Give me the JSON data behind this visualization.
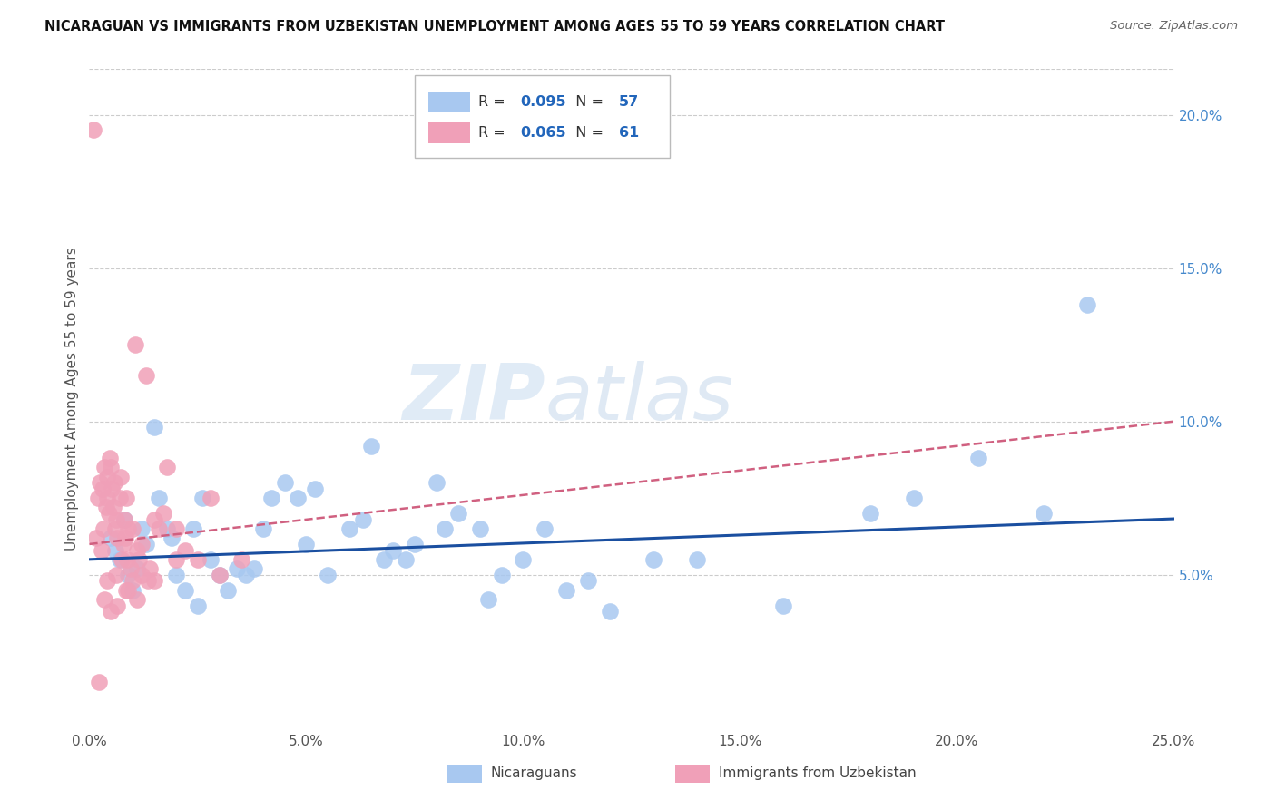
{
  "title": "NICARAGUAN VS IMMIGRANTS FROM UZBEKISTAN UNEMPLOYMENT AMONG AGES 55 TO 59 YEARS CORRELATION CHART",
  "source": "Source: ZipAtlas.com",
  "ylabel": "Unemployment Among Ages 55 to 59 years",
  "xlim": [
    0.0,
    25.0
  ],
  "ylim": [
    0.0,
    21.5
  ],
  "legend_blue_R": "0.095",
  "legend_blue_N": "57",
  "legend_pink_R": "0.065",
  "legend_pink_N": "61",
  "blue_color": "#A8C8F0",
  "pink_color": "#F0A0B8",
  "blue_line_color": "#1A4FA0",
  "pink_line_color": "#D06080",
  "watermark_zip": "ZIP",
  "watermark_atlas": "atlas",
  "blue_x": [
    0.5,
    0.6,
    0.7,
    0.8,
    0.9,
    1.0,
    1.1,
    1.2,
    1.3,
    1.5,
    1.6,
    1.8,
    1.9,
    2.0,
    2.2,
    2.4,
    2.5,
    2.6,
    2.8,
    3.0,
    3.2,
    3.4,
    3.6,
    3.8,
    4.0,
    4.2,
    4.5,
    4.8,
    5.0,
    5.5,
    6.0,
    6.3,
    6.8,
    7.0,
    7.5,
    8.0,
    8.2,
    8.5,
    9.0,
    9.5,
    10.0,
    10.5,
    11.0,
    11.5,
    12.0,
    13.0,
    14.0,
    16.0,
    18.0,
    19.0,
    20.5,
    22.0,
    23.0,
    5.2,
    7.3,
    9.2,
    6.5
  ],
  "blue_y": [
    6.2,
    5.8,
    5.5,
    6.8,
    5.0,
    4.5,
    5.2,
    6.5,
    6.0,
    9.8,
    7.5,
    6.5,
    6.2,
    5.0,
    4.5,
    6.5,
    4.0,
    7.5,
    5.5,
    5.0,
    4.5,
    5.2,
    5.0,
    5.2,
    6.5,
    7.5,
    8.0,
    7.5,
    6.0,
    5.0,
    6.5,
    6.8,
    5.5,
    5.8,
    6.0,
    8.0,
    6.5,
    7.0,
    6.5,
    5.0,
    5.5,
    6.5,
    4.5,
    4.8,
    3.8,
    5.5,
    5.5,
    4.0,
    7.0,
    7.5,
    8.8,
    7.0,
    13.8,
    7.8,
    5.5,
    4.2,
    9.2
  ],
  "pink_x": [
    0.1,
    0.15,
    0.2,
    0.25,
    0.3,
    0.32,
    0.35,
    0.38,
    0.4,
    0.42,
    0.45,
    0.48,
    0.5,
    0.52,
    0.55,
    0.58,
    0.6,
    0.62,
    0.65,
    0.7,
    0.72,
    0.75,
    0.78,
    0.8,
    0.82,
    0.85,
    0.88,
    0.9,
    0.95,
    1.0,
    1.05,
    1.1,
    1.15,
    1.2,
    1.3,
    1.4,
    1.5,
    1.6,
    1.7,
    1.8,
    2.0,
    2.2,
    2.5,
    2.8,
    3.0,
    3.5,
    0.28,
    0.42,
    0.62,
    0.9,
    1.0,
    1.2,
    1.5,
    2.0,
    0.35,
    0.5,
    0.65,
    0.85,
    1.1,
    1.35,
    0.22
  ],
  "pink_y": [
    19.5,
    6.2,
    7.5,
    8.0,
    7.8,
    6.5,
    8.5,
    7.2,
    8.2,
    7.5,
    7.0,
    8.8,
    8.5,
    7.8,
    7.2,
    8.0,
    6.5,
    6.8,
    6.2,
    7.5,
    8.2,
    5.5,
    6.0,
    6.8,
    6.2,
    7.5,
    5.5,
    6.5,
    5.2,
    6.5,
    12.5,
    5.8,
    5.5,
    6.0,
    11.5,
    5.2,
    6.8,
    6.5,
    7.0,
    8.5,
    6.5,
    5.8,
    5.5,
    7.5,
    5.0,
    5.5,
    5.8,
    4.8,
    5.0,
    4.5,
    4.8,
    5.0,
    4.8,
    5.5,
    4.2,
    3.8,
    4.0,
    4.5,
    4.2,
    4.8,
    1.5
  ]
}
